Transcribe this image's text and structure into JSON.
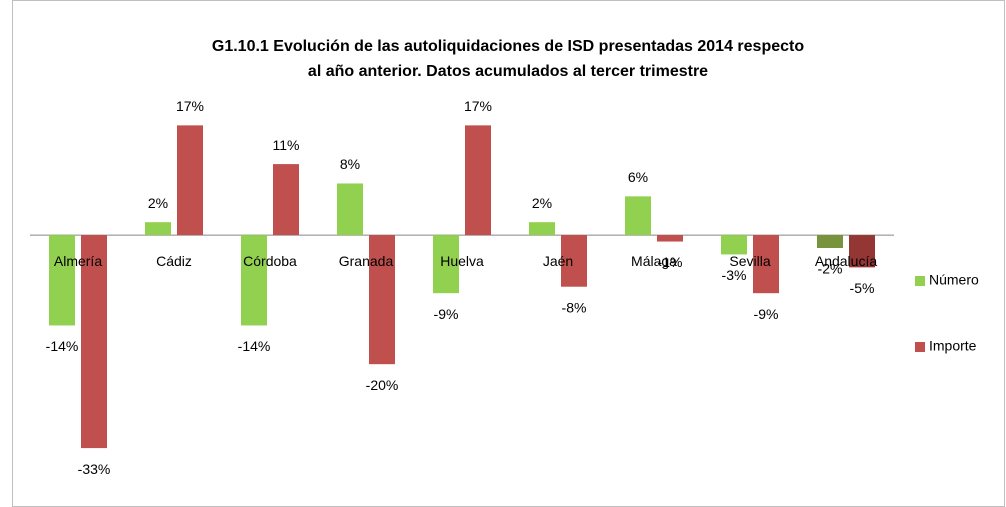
{
  "chart_data": {
    "type": "bar",
    "title": [
      "G1.10.1 Evolución de las autoliquidaciones de ISD presentadas 2014 respecto",
      "al año anterior. Datos acumulados al tercer trimestre"
    ],
    "categories": [
      "Almería",
      "Cádiz",
      "Córdoba",
      "Granada",
      "Huelva",
      "Jaén",
      "Málaga",
      "Sevilla",
      "Andalucía"
    ],
    "series": [
      {
        "name": "Número",
        "color": "#92d050",
        "colors": [
          "#92d050",
          "#92d050",
          "#92d050",
          "#92d050",
          "#92d050",
          "#92d050",
          "#92d050",
          "#92d050",
          "#77933c"
        ],
        "values": [
          -14,
          2,
          -14,
          8,
          -9,
          2,
          6,
          -3,
          -2
        ],
        "value_labels": [
          "-14%",
          "2%",
          "-14%",
          "8%",
          "-9%",
          "2%",
          "6%",
          "-3%",
          "-2%"
        ]
      },
      {
        "name": "Importe",
        "color": "#c0504d",
        "colors": [
          "#c0504d",
          "#c0504d",
          "#c0504d",
          "#c0504d",
          "#c0504d",
          "#c0504d",
          "#c0504d",
          "#c0504d",
          "#943634"
        ],
        "values": [
          -33,
          17,
          11,
          -20,
          17,
          -8,
          -1,
          -9,
          -5
        ],
        "value_labels": [
          "-33%",
          "17%",
          "11%",
          "-20%",
          "17%",
          "-8%",
          "-1%",
          "-9%",
          "-5%"
        ]
      }
    ],
    "ylim": [
      -35,
      20
    ],
    "legend": "right"
  }
}
